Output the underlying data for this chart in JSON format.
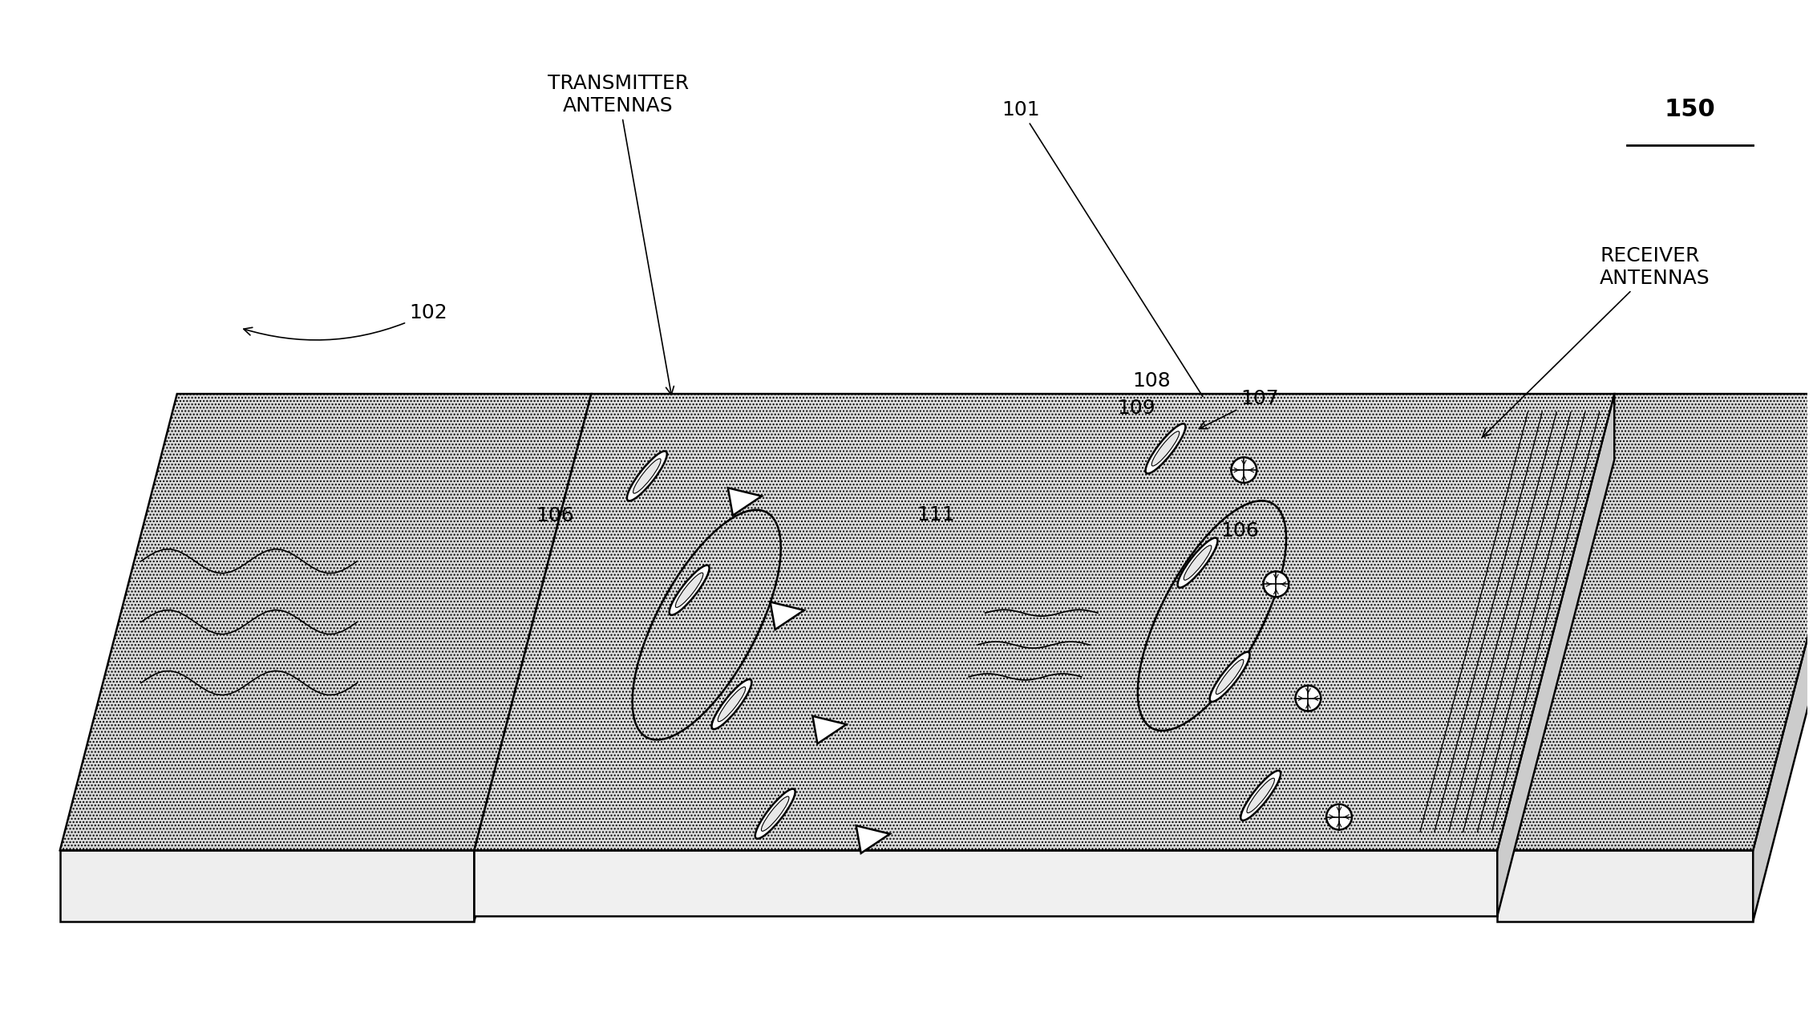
{
  "bg_color": "#ffffff",
  "line_color": "#000000",
  "label_fontsize": 18,
  "label_fontsize_large": 22,
  "labels": {
    "150": "150",
    "101": "101",
    "102_left": "102",
    "102_right": "102",
    "106_left": "106",
    "106_right": "106",
    "107": "107",
    "108": "108",
    "109": "109",
    "111": "111",
    "tx_antennas": "TRANSMITTER\nANTENNAS",
    "rx_antennas": "RECEIVER\nANTENNAS"
  },
  "hatch_density": "....",
  "lw_main": 1.8,
  "lw_thin": 1.2
}
